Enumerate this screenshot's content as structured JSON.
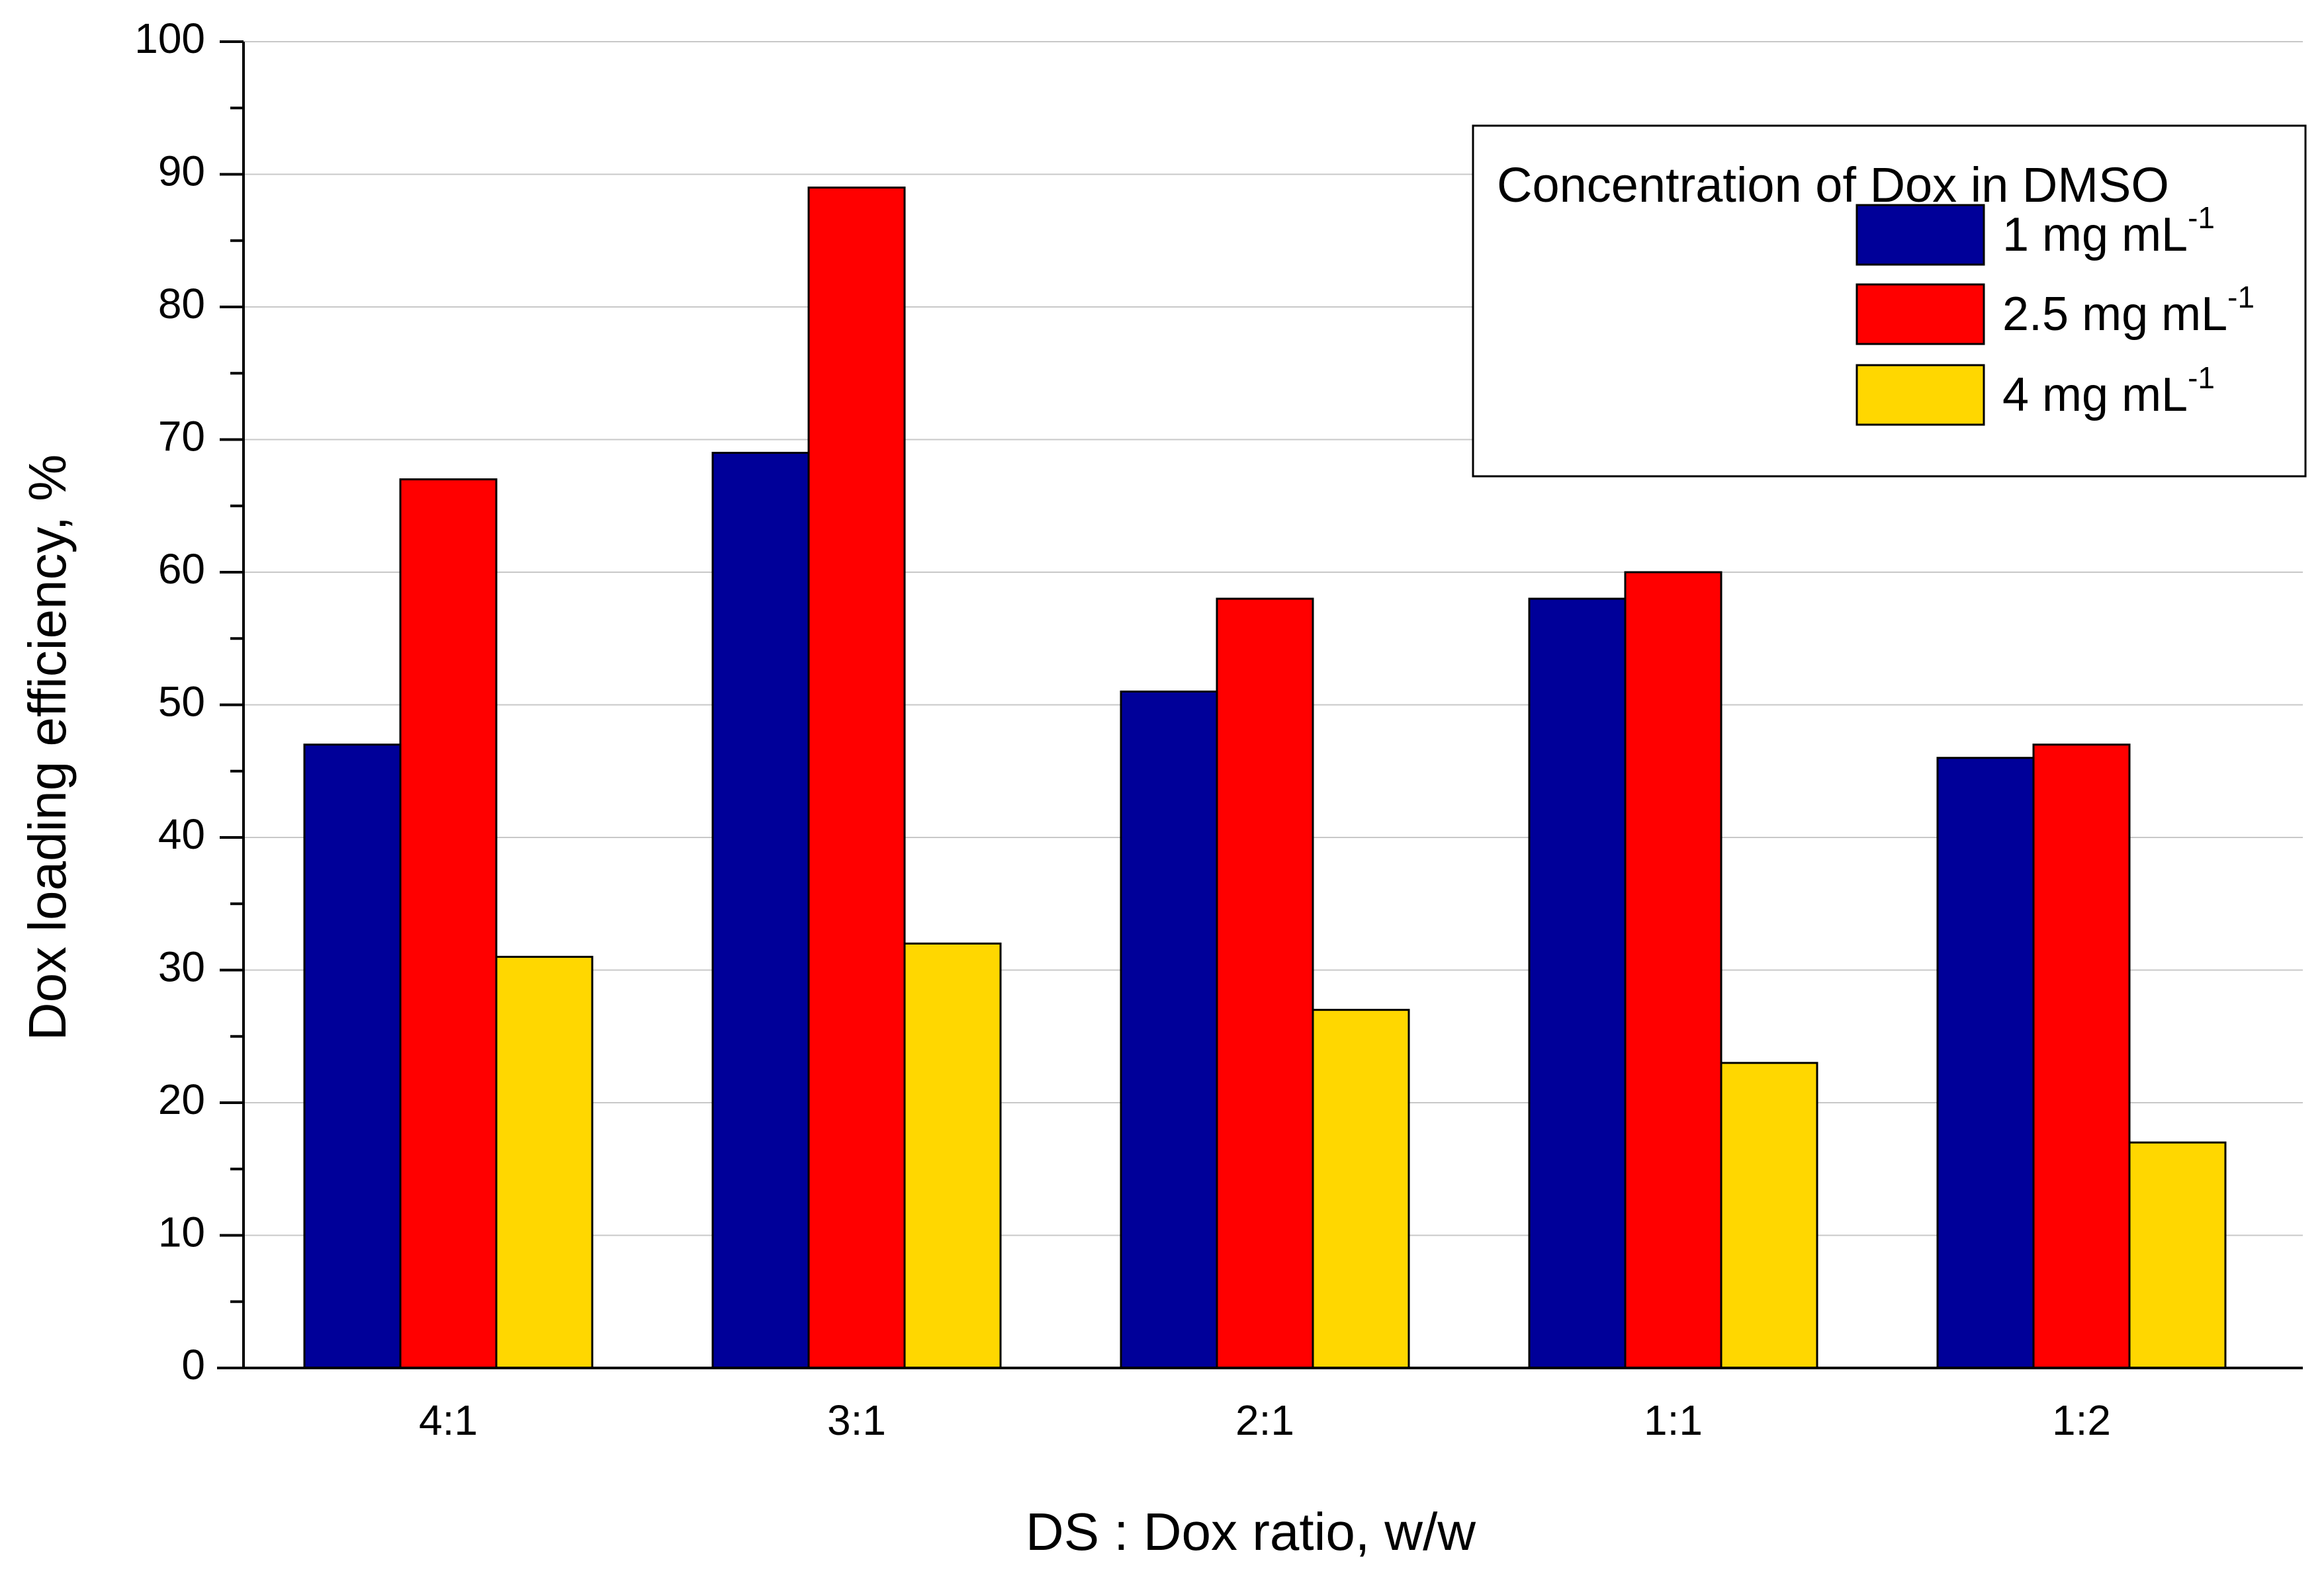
{
  "chart_data": {
    "type": "bar",
    "title": "",
    "xlabel": "DS : Dox ratio, w/w",
    "ylabel": "Dox loading efficiency, %",
    "ylim": [
      0,
      100
    ],
    "y_major_ticks": [
      0,
      10,
      20,
      30,
      40,
      50,
      60,
      70,
      80,
      90,
      100
    ],
    "y_tick_labels": [
      "0",
      "10",
      "20",
      "30",
      "40",
      "50",
      "60",
      "70",
      "80",
      "90",
      "100"
    ],
    "grid": true,
    "categories": [
      "4:1",
      "3:1",
      "2:1",
      "1:1",
      "1:2"
    ],
    "legend": {
      "title": "Concentration of Dox in DMSO",
      "position": "top-right"
    },
    "series": [
      {
        "name": "1 mg mL-1",
        "label_main": "1 mg mL",
        "label_sup": "-1",
        "color": "#000099",
        "values": [
          47,
          69,
          51,
          58,
          46
        ]
      },
      {
        "name": "2.5 mg mL-1",
        "label_main": "2.5 mg mL",
        "label_sup": "-1",
        "color": "#ff0000",
        "values": [
          67,
          89,
          58,
          60,
          47
        ]
      },
      {
        "name": "4 mg mL-1",
        "label_main": "4 mg mL",
        "label_sup": "-1",
        "color": "#ffd700",
        "values": [
          31,
          32,
          27,
          23,
          17
        ]
      }
    ]
  }
}
